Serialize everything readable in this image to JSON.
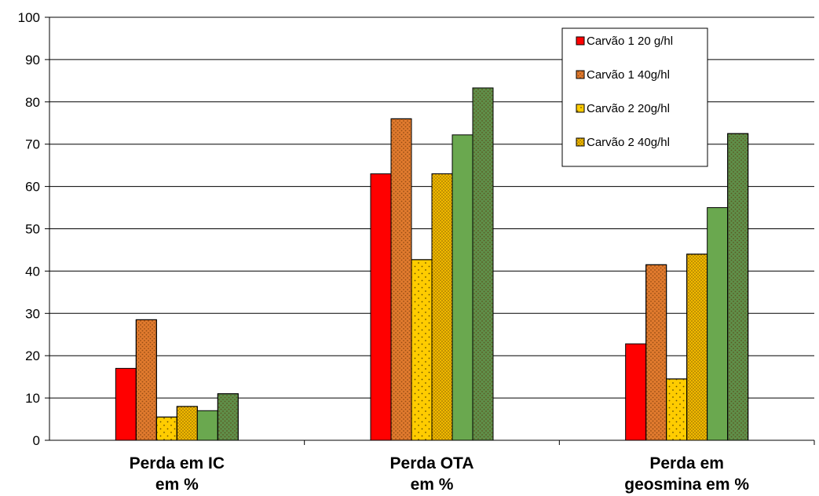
{
  "chart_data": {
    "type": "bar",
    "categories": [
      [
        "Perda em IC",
        "em %"
      ],
      [
        "Perda OTA",
        "em %"
      ],
      [
        "Perda em",
        "geosmina em %"
      ]
    ],
    "series": [
      {
        "name": "Carvão 1 20 g/hl",
        "values": [
          17,
          63,
          22.8
        ],
        "color": "#ff0000",
        "pattern": "none"
      },
      {
        "name": "Carvão 1 40g/hl",
        "values": [
          28.5,
          76,
          41.5
        ],
        "color": "#e07a2e",
        "pattern": "dots-dark"
      },
      {
        "name": "Carvão 2 20g/hl",
        "values": [
          5.5,
          42.7,
          14.5
        ],
        "color": "#ffcc00",
        "pattern": "sparse-dots"
      },
      {
        "name": "Carvão 2 40g/hl",
        "values": [
          8,
          63,
          44
        ],
        "color": "#f0b800",
        "pattern": "dense-dots"
      },
      {
        "values": [
          7,
          72.2,
          55
        ],
        "color": "#6aa84f",
        "pattern": "none"
      },
      {
        "values": [
          11,
          83.3,
          72.5
        ],
        "color": "#5f8f4a",
        "pattern": "dots-dark"
      }
    ],
    "ylim": [
      0,
      100
    ],
    "yticks": [
      0,
      10,
      20,
      30,
      40,
      50,
      60,
      70,
      80,
      90,
      100
    ],
    "grid": true,
    "legend_position": "top-right",
    "xlabel": "",
    "ylabel": "",
    "title": ""
  }
}
